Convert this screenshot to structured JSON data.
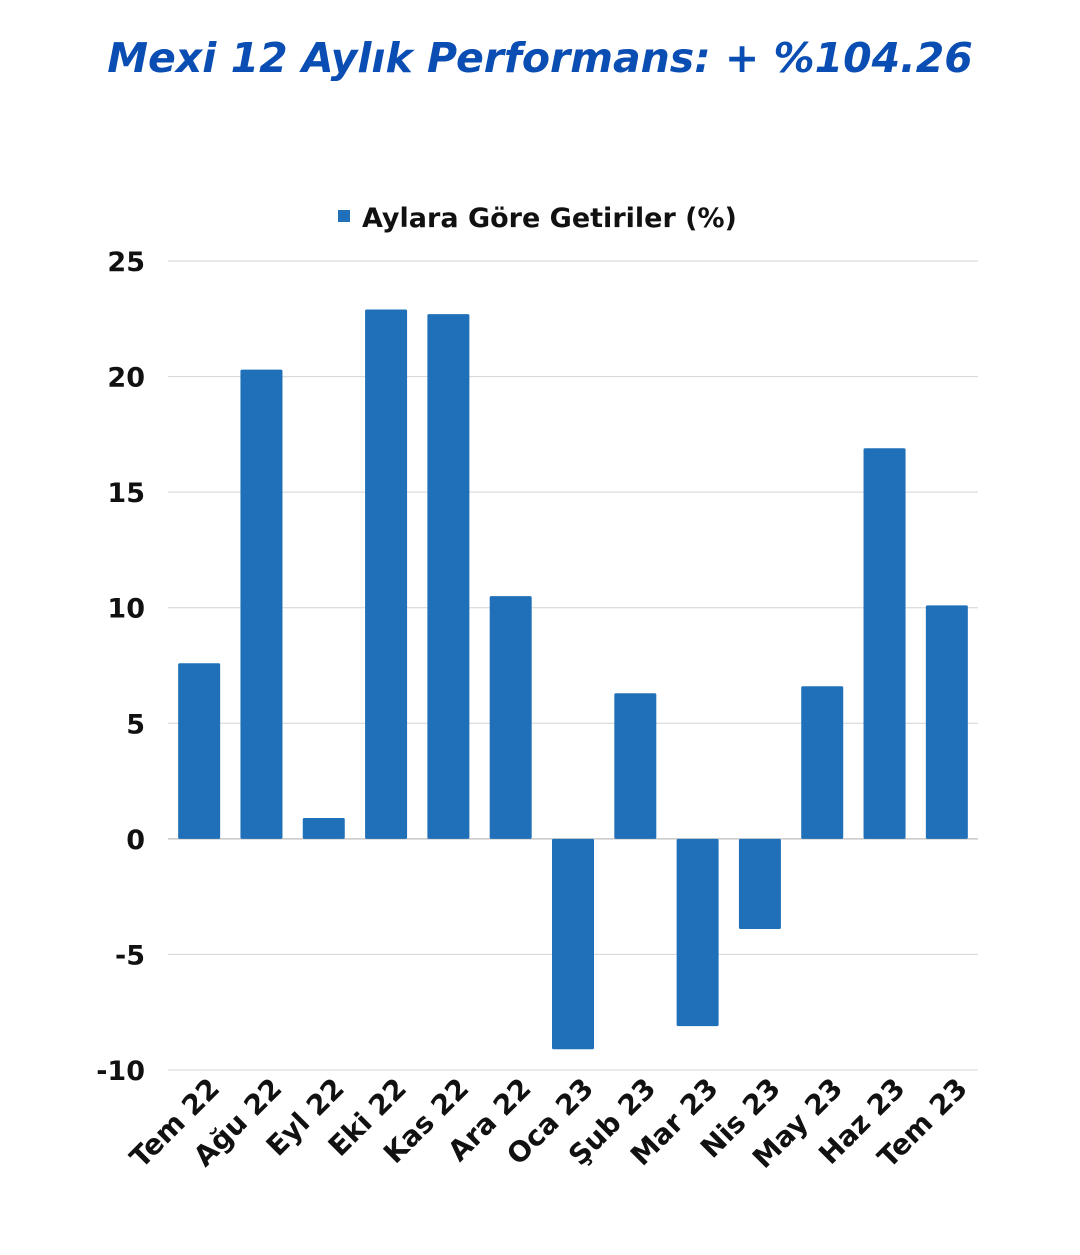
{
  "title": "Mexi 12 Aylık Performans: + %104.26",
  "chart_data": {
    "type": "bar",
    "legend": {
      "label": "Aylara Göre Getiriler (%)",
      "position": "top"
    },
    "categories": [
      "Tem 22",
      "Ağu 22",
      "Eyl 22",
      "Eki 22",
      "Kas 22",
      "Ara 22",
      "Oca 23",
      "Şub 23",
      "Mar 23",
      "Nis 23",
      "May 23",
      "Haz 23",
      "Tem 23"
    ],
    "series": [
      {
        "name": "Aylara Göre Getiriler (%)",
        "color": "#1f70b8",
        "values": [
          7.6,
          20.3,
          0.9,
          22.9,
          22.7,
          10.5,
          -9.1,
          6.3,
          -8.1,
          -3.9,
          6.6,
          16.9,
          10.1
        ]
      }
    ],
    "ylim": [
      -10,
      25
    ],
    "yticks": [
      25,
      20,
      15,
      10,
      5,
      0,
      -5,
      -10
    ],
    "grid": true,
    "xlabel": "",
    "ylabel": ""
  }
}
